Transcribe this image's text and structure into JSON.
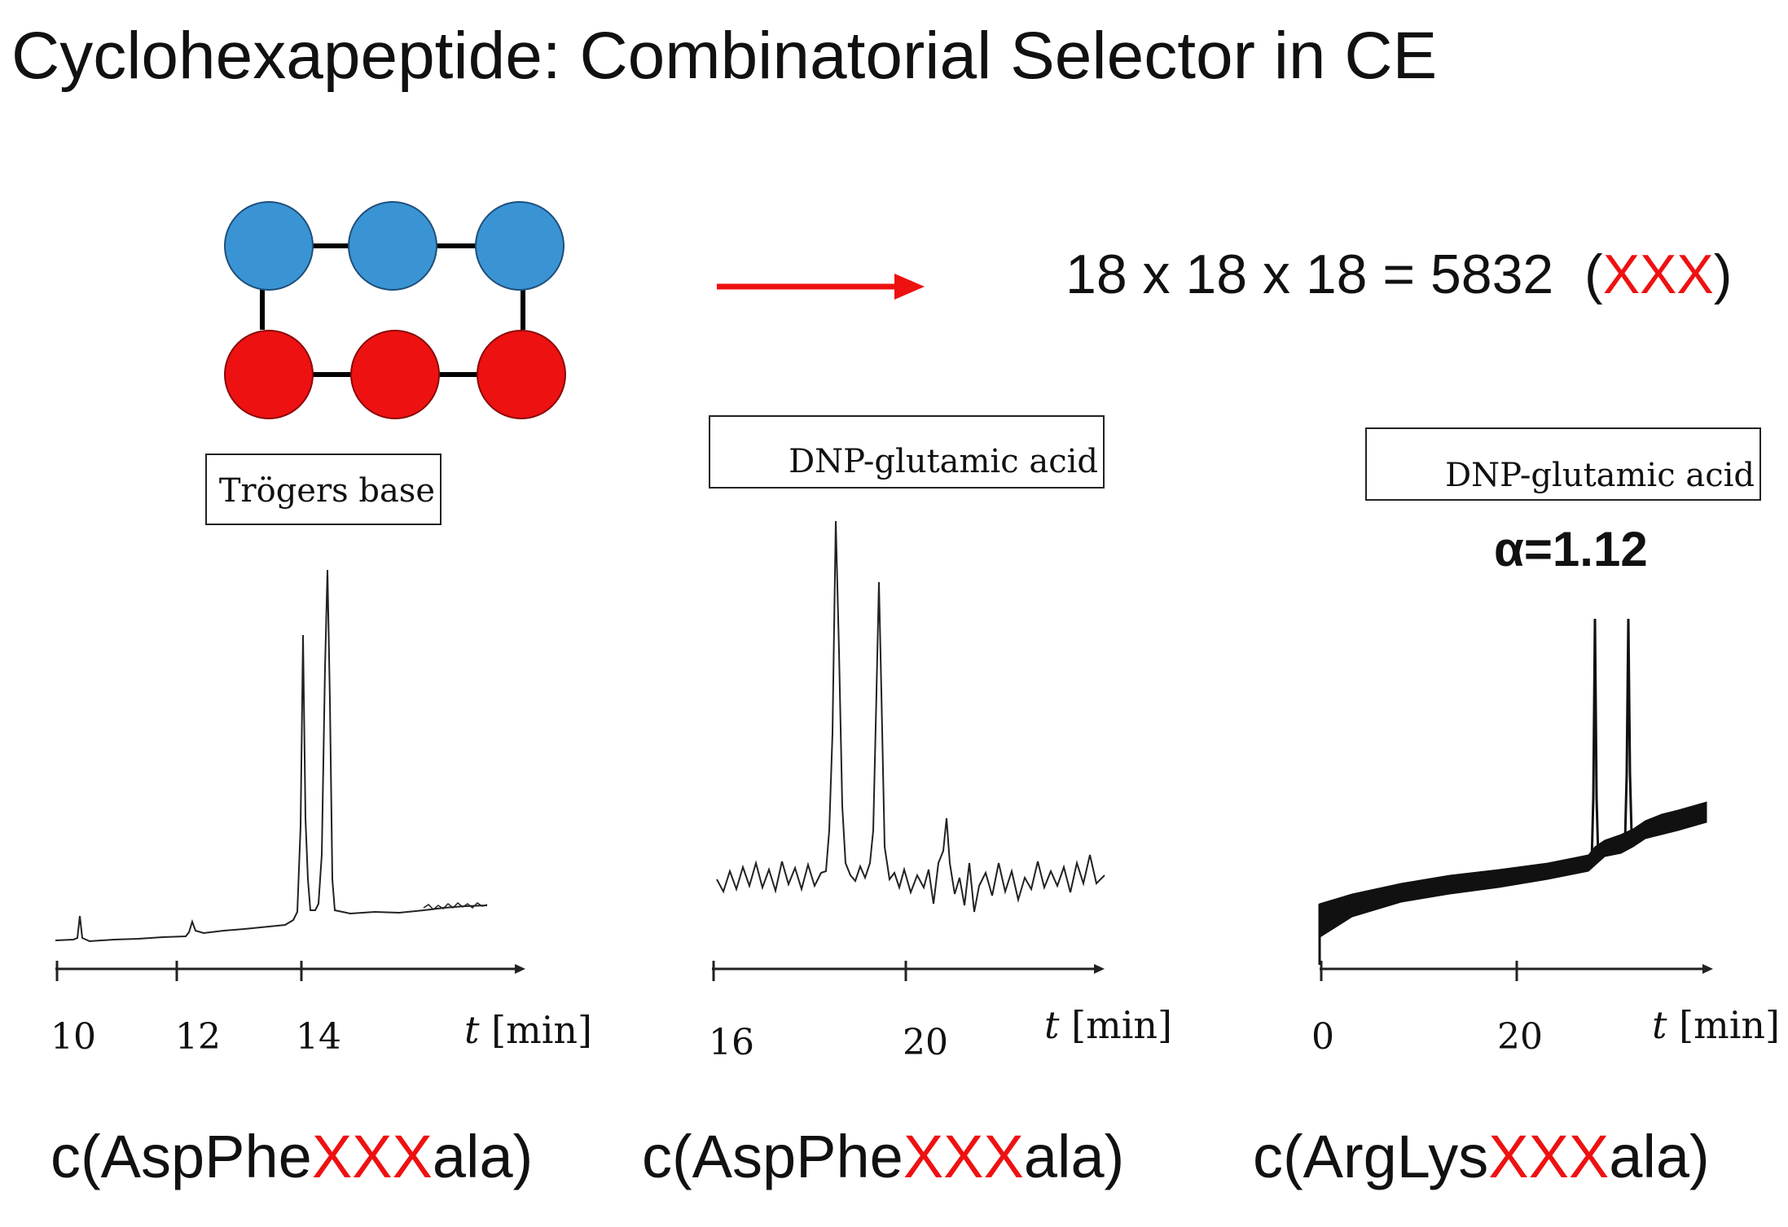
{
  "title": "Cyclohexapeptide: Combinatorial Selector in CE",
  "formula": {
    "main": "18 x 18 x 18 = 5832",
    "open": "(",
    "var": "XXX",
    "close": ")"
  },
  "alpha_label": "α=1.12",
  "panels": [
    {
      "analyte": "Trögers base",
      "ticks": [
        "10",
        "12",
        "14"
      ],
      "time_label": {
        "var": "t",
        "unit": "[min]"
      },
      "caption": {
        "prefix": "c(AspPhe",
        "var": "XXX",
        "suffix": "ala)"
      }
    },
    {
      "analyte": "DNP-glutamic acid",
      "ticks": [
        "16",
        "20"
      ],
      "time_label": {
        "var": "t",
        "unit": "[min]"
      },
      "caption": {
        "prefix": "c(AspPhe",
        "var": "XXX",
        "suffix": "ala)"
      }
    },
    {
      "analyte": "DNP-glutamic acid",
      "ticks": [
        "0",
        "20"
      ],
      "time_label": {
        "var": "t",
        "unit": "[min]"
      },
      "caption": {
        "prefix": "c(ArgLys",
        "var": "XXX",
        "suffix": "ala)"
      }
    }
  ],
  "colors": {
    "blue_node": "#3a94d4",
    "red_node": "#ee1111",
    "arrow": "#ee1111",
    "highlight": "#ee1111"
  }
}
